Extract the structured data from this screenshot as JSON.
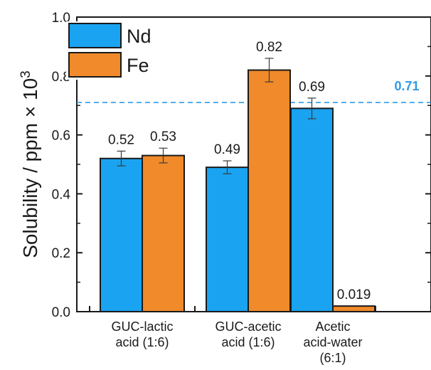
{
  "chart_data": {
    "type": "bar",
    "categories": [
      [
        "GUC-lactic",
        "acid (1:6)"
      ],
      [
        "GUC-acetic",
        "acid (1:6)"
      ],
      [
        "Acetic",
        "acid-water",
        "(6:1)"
      ]
    ],
    "series": [
      {
        "name": "Nd",
        "color": "#1aa3f0",
        "values": [
          0.52,
          0.49,
          0.69
        ],
        "errors": [
          0.025,
          0.022,
          0.035
        ],
        "labels": [
          "0.52",
          "0.49",
          "0.69"
        ]
      },
      {
        "name": "Fe",
        "color": "#f08a2a",
        "values": [
          0.53,
          0.82,
          0.019
        ],
        "errors": [
          0.025,
          0.04,
          0.0
        ],
        "labels": [
          "0.53",
          "0.82",
          "0.019"
        ]
      }
    ],
    "ylabel_prefix": "Solubility / ppm × 10",
    "ylabel_sup": "3",
    "xlabel": "",
    "ylim": [
      0.0,
      1.0
    ],
    "yticks": [
      "0.0",
      "0.2",
      "0.4",
      "0.6",
      "0.8",
      "1.0"
    ],
    "ytick_values": [
      0.0,
      0.2,
      0.4,
      0.6,
      0.8,
      1.0
    ],
    "reference_line": {
      "value": 0.71,
      "label": "0.71",
      "color": "#2f9be6",
      "style": "dashed"
    },
    "legend_position": "top-left",
    "grid": false
  }
}
